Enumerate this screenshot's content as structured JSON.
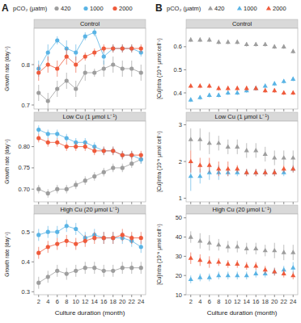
{
  "panels": [
    {
      "label": "A",
      "legend_title": "pCO₂ (μatm)"
    },
    {
      "label": "B",
      "legend_title": "pCO₂ (μatm)"
    }
  ],
  "chart_data": [
    {
      "type": "scatter",
      "title": "Control",
      "y_label": "Growth rate (day⁻¹)",
      "tick_labels": "y",
      "x": [
        2,
        4,
        6,
        8,
        10,
        12,
        14,
        16,
        18,
        20,
        22,
        24
      ],
      "xlim": [
        1,
        25
      ],
      "xticks": [
        2,
        4,
        6,
        8,
        10,
        12,
        14,
        16,
        18,
        20,
        22,
        24
      ],
      "ylim": [
        0.69,
        0.89
      ],
      "yticks": [
        0.7,
        0.8
      ],
      "series": [
        {
          "name": "420",
          "color": "#9e9e9e",
          "marker": "circle",
          "line_style": "solid",
          "values": [
            0.73,
            0.71,
            0.74,
            0.76,
            0.74,
            0.78,
            0.78,
            0.79,
            0.8,
            0.79,
            0.79,
            0.78
          ],
          "errors": [
            0.02,
            0.02,
            0.02,
            0.02,
            0.02,
            0.02,
            0.01,
            0.02,
            0.02,
            0.02,
            0.02,
            0.02
          ]
        },
        {
          "name": "1000",
          "color": "#5ab4e5",
          "marker": "circle",
          "line_style": "solid",
          "values": [
            0.79,
            0.83,
            0.86,
            0.84,
            0.83,
            0.87,
            0.88,
            0.82,
            0.84,
            0.84,
            0.84,
            0.83
          ],
          "errors": [
            0.02,
            0.02,
            0.01,
            0.02,
            0.02,
            0.01,
            0.01,
            0.02,
            0.01,
            0.01,
            0.01,
            0.01
          ]
        },
        {
          "name": "2000",
          "color": "#ef5b3c",
          "marker": "circle",
          "line_style": "solid",
          "values": [
            0.78,
            0.8,
            0.79,
            0.82,
            0.8,
            0.82,
            0.83,
            0.84,
            0.84,
            0.84,
            0.84,
            0.84
          ],
          "errors": [
            0.02,
            0.02,
            0.02,
            0.02,
            0.02,
            0.01,
            0.01,
            0.01,
            0.01,
            0.01,
            0.01,
            0.01
          ]
        }
      ]
    },
    {
      "type": "scatter",
      "title": "Low Cu (1 μmol L⁻¹)",
      "y_label": "Growth rate (day⁻¹)",
      "tick_labels": "y",
      "x": [
        2,
        4,
        6,
        8,
        10,
        12,
        14,
        16,
        18,
        20,
        22,
        24
      ],
      "xlim": [
        1,
        25
      ],
      "xticks": [
        2,
        4,
        6,
        8,
        10,
        12,
        14,
        16,
        18,
        20,
        22,
        24
      ],
      "ylim": [
        0.67,
        0.86
      ],
      "yticks": [
        {
          "value": 0.7,
          "label": "0.70"
        },
        {
          "value": 0.75,
          "label": "0.75"
        },
        {
          "value": 0.8,
          "label": "0.80"
        }
      ],
      "series": [
        {
          "name": "420",
          "color": "#9e9e9e",
          "marker": "circle",
          "line_style": "solid",
          "values": [
            0.7,
            0.69,
            0.7,
            0.7,
            0.71,
            0.72,
            0.73,
            0.74,
            0.75,
            0.75,
            0.76,
            0.77
          ],
          "errors": [
            0.01,
            0.01,
            0.01,
            0.01,
            0.01,
            0.01,
            0.01,
            0.01,
            0.01,
            0.01,
            0.01,
            0.01
          ]
        },
        {
          "name": "1000",
          "color": "#5ab4e5",
          "marker": "circle",
          "line_style": "solid",
          "values": [
            0.84,
            0.83,
            0.83,
            0.82,
            0.81,
            0.81,
            0.8,
            0.79,
            0.79,
            0.78,
            0.78,
            0.77
          ],
          "errors": [
            0.01,
            0.01,
            0.01,
            0.01,
            0.01,
            0.01,
            0.01,
            0.01,
            0.01,
            0.01,
            0.01,
            0.01
          ]
        },
        {
          "name": "2000",
          "color": "#ef5b3c",
          "marker": "circle",
          "line_style": "solid",
          "values": [
            0.82,
            0.81,
            0.81,
            0.8,
            0.8,
            0.8,
            0.79,
            0.79,
            0.79,
            0.78,
            0.78,
            0.78
          ],
          "errors": [
            0.01,
            0.01,
            0.01,
            0.01,
            0.01,
            0.01,
            0.01,
            0.01,
            0.01,
            0.01,
            0.01,
            0.01
          ]
        }
      ]
    },
    {
      "type": "scatter",
      "title": "High Cu (20 μmol L⁻¹)",
      "y_label": "Growth rate (day⁻¹)",
      "x_label": "Culture duration (month)",
      "x": [
        2,
        4,
        6,
        8,
        10,
        12,
        14,
        16,
        18,
        20,
        22,
        24
      ],
      "xlim": [
        1,
        25
      ],
      "xticks": [
        2,
        4,
        6,
        8,
        10,
        12,
        14,
        16,
        18,
        20,
        22,
        24
      ],
      "ylim": [
        0.29,
        0.56
      ],
      "yticks": [
        0.3,
        0.4,
        0.5
      ],
      "series": [
        {
          "name": "420",
          "color": "#9e9e9e",
          "marker": "circle",
          "line_style": "solid",
          "values": [
            0.33,
            0.35,
            0.37,
            0.36,
            0.37,
            0.38,
            0.38,
            0.37,
            0.37,
            0.38,
            0.38,
            0.38
          ],
          "errors": [
            0.02,
            0.02,
            0.02,
            0.02,
            0.02,
            0.02,
            0.02,
            0.02,
            0.02,
            0.02,
            0.02,
            0.02
          ]
        },
        {
          "name": "1000",
          "color": "#5ab4e5",
          "marker": "circle",
          "line_style": "solid",
          "values": [
            0.49,
            0.5,
            0.5,
            0.52,
            0.51,
            0.48,
            0.49,
            0.48,
            0.48,
            0.48,
            0.47,
            0.45
          ],
          "errors": [
            0.02,
            0.02,
            0.02,
            0.02,
            0.02,
            0.02,
            0.02,
            0.02,
            0.02,
            0.02,
            0.02,
            0.02
          ]
        },
        {
          "name": "2000",
          "color": "#ef5b3c",
          "marker": "circle",
          "line_style": "solid",
          "values": [
            0.43,
            0.45,
            0.46,
            0.47,
            0.46,
            0.47,
            0.48,
            0.48,
            0.48,
            0.49,
            0.48,
            0.48
          ],
          "errors": [
            0.02,
            0.02,
            0.02,
            0.02,
            0.02,
            0.02,
            0.02,
            0.02,
            0.02,
            0.02,
            0.02,
            0.02
          ]
        }
      ]
    },
    {
      "type": "scatter",
      "title": "Control",
      "y_label": "[Cu]intra (10⁻⁸ μmol cell⁻¹)",
      "tick_labels": "y",
      "x": [
        2,
        4,
        6,
        8,
        10,
        12,
        14,
        16,
        18,
        20,
        22,
        24
      ],
      "xlim": [
        1,
        25
      ],
      "xticks": [
        2,
        4,
        6,
        8,
        10,
        12,
        14,
        16,
        18,
        20,
        22,
        24
      ],
      "ylim": [
        0.33,
        0.68
      ],
      "yticks": [
        0.4,
        0.5,
        0.6
      ],
      "series": [
        {
          "name": "420",
          "color": "#9e9e9e",
          "marker": "triangle",
          "values": [
            0.63,
            0.63,
            0.63,
            0.62,
            0.62,
            0.62,
            0.61,
            0.61,
            0.61,
            0.6,
            0.6,
            0.58
          ],
          "errors": [
            0.01,
            0.01,
            0.01,
            0.01,
            0.01,
            0.01,
            0.01,
            0.01,
            0.01,
            0.01,
            0.01,
            0.01
          ]
        },
        {
          "name": "1000",
          "color": "#5ab4e5",
          "marker": "triangle",
          "values": [
            0.37,
            0.38,
            0.39,
            0.39,
            0.4,
            0.4,
            0.41,
            0.42,
            0.43,
            0.44,
            0.45,
            0.46
          ],
          "errors": [
            0.01,
            0.01,
            0.01,
            0.01,
            0.01,
            0.01,
            0.01,
            0.01,
            0.01,
            0.01,
            0.01,
            0.01
          ]
        },
        {
          "name": "2000",
          "color": "#ef5b3c",
          "marker": "triangle",
          "values": [
            0.43,
            0.43,
            0.43,
            0.42,
            0.42,
            0.42,
            0.42,
            0.42,
            0.41,
            0.41,
            0.4,
            0.4
          ],
          "errors": [
            0.01,
            0.01,
            0.01,
            0.01,
            0.01,
            0.01,
            0.01,
            0.01,
            0.01,
            0.01,
            0.01,
            0.01
          ]
        }
      ]
    },
    {
      "type": "scatter",
      "title": "Low Cu (1 μmol L⁻¹)",
      "y_label": "[Cu]intra (10⁻⁸ μmol cell⁻¹)",
      "tick_labels": "y",
      "x": [
        2,
        4,
        6,
        8,
        10,
        12,
        14,
        16,
        18,
        20,
        22,
        24
      ],
      "xlim": [
        1,
        25
      ],
      "xticks": [
        2,
        4,
        6,
        8,
        10,
        12,
        14,
        16,
        18,
        20,
        22,
        24
      ],
      "ylim": [
        0.9,
        3.1
      ],
      "yticks": [
        1,
        2,
        3
      ],
      "series": [
        {
          "name": "420",
          "color": "#9e9e9e",
          "marker": "triangle",
          "values": [
            2.6,
            2.6,
            2.5,
            2.5,
            2.4,
            2.4,
            2.3,
            2.3,
            2.2,
            2.1,
            2.1,
            2.1
          ],
          "errors": [
            0.3,
            0.3,
            0.3,
            0.2,
            0.2,
            0.2,
            0.2,
            0.2,
            0.2,
            0.2,
            0.2,
            0.2
          ]
        },
        {
          "name": "1000",
          "color": "#5ab4e5",
          "marker": "triangle",
          "values": [
            1.6,
            1.6,
            1.7,
            1.7,
            1.7,
            1.7,
            1.7,
            1.7,
            1.7,
            1.7,
            1.7,
            1.8
          ],
          "errors": [
            0.4,
            0.2,
            0.2,
            0.2,
            0.1,
            0.1,
            0.1,
            0.1,
            0.1,
            0.1,
            0.1,
            0.1
          ]
        },
        {
          "name": "2000",
          "color": "#ef5b3c",
          "marker": "triangle",
          "values": [
            2.0,
            1.9,
            1.9,
            1.8,
            1.8,
            1.8,
            1.7,
            1.7,
            1.7,
            1.7,
            1.8,
            1.8
          ],
          "errors": [
            0.3,
            0.2,
            0.2,
            0.2,
            0.2,
            0.1,
            0.1,
            0.1,
            0.1,
            0.1,
            0.1,
            0.1
          ]
        }
      ]
    },
    {
      "type": "scatter",
      "title": "High Cu (20 μmol L⁻¹)",
      "y_label": "[Cu]intra (10⁻⁸ μmol cell⁻¹)",
      "x_label": "Culture duration (month)",
      "x": [
        2,
        4,
        6,
        8,
        10,
        12,
        14,
        16,
        18,
        20,
        22,
        24
      ],
      "xlim": [
        1,
        25
      ],
      "xticks": [
        2,
        4,
        6,
        8,
        10,
        12,
        14,
        16,
        18,
        20,
        22,
        24
      ],
      "ylim": [
        10,
        52
      ],
      "yticks": [
        10,
        20,
        30,
        40,
        50
      ],
      "series": [
        {
          "name": "420",
          "color": "#9e9e9e",
          "marker": "triangle",
          "values": [
            40,
            38,
            37,
            36,
            35,
            35,
            34,
            34,
            33,
            33,
            32,
            32
          ],
          "errors": [
            3,
            4,
            4,
            3,
            3,
            3,
            3,
            3,
            3,
            4,
            4,
            4
          ]
        },
        {
          "name": "1000",
          "color": "#5ab4e5",
          "marker": "triangle",
          "values": [
            18,
            19,
            19,
            20,
            20,
            20,
            20,
            21,
            21,
            22,
            23,
            24
          ],
          "errors": [
            2,
            2,
            2,
            2,
            2,
            2,
            2,
            2,
            2,
            2,
            2,
            3
          ]
        },
        {
          "name": "2000",
          "color": "#ef5b3c",
          "marker": "triangle",
          "values": [
            29,
            28,
            27,
            27,
            26,
            26,
            25,
            25,
            23,
            22,
            21,
            20
          ],
          "errors": [
            3,
            3,
            3,
            2,
            2,
            2,
            2,
            2,
            2,
            2,
            2,
            2
          ]
        }
      ]
    }
  ]
}
